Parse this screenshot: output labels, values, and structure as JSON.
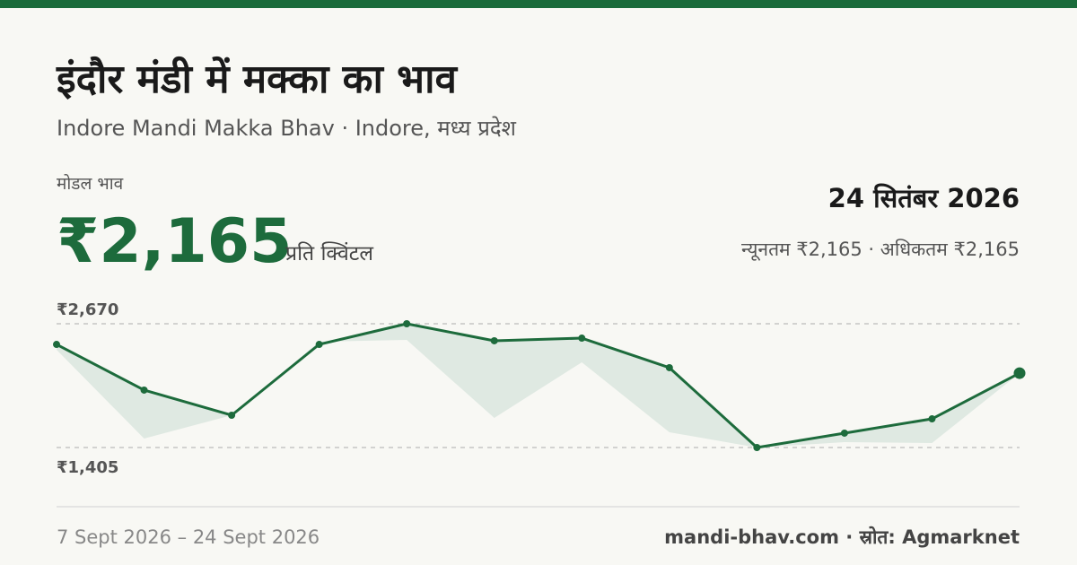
{
  "header": {
    "title": "इंदौर मंडी में मक्का का भाव",
    "subtitle": "Indore Mandi Makka Bhav · Indore, मध्य प्रदेश",
    "price_label": "मोडल भाव",
    "price": "₹2,165",
    "unit": "प्रति क्विंटल",
    "date": "24 सितंबर 2026",
    "range": "न्यूनतम ₹2,165 · अधिकतम ₹2,165"
  },
  "chart_data": {
    "type": "line",
    "categories": [
      null,
      null,
      null,
      null,
      null,
      null,
      null,
      null,
      null,
      null,
      null,
      null
    ],
    "series": [
      {
        "color": "#1d6b3c",
        "values": [
          2459,
          1992,
          1735,
          2459,
          2670,
          2496,
          2523,
          2221,
          1405,
          1552,
          1698,
          2165
        ]
      },
      {
        "color": "#dfe9e2",
        "values": [
          2404,
          1497,
          1735,
          2487,
          2505,
          1707,
          2276,
          1561,
          1405,
          1460,
          1451,
          2165
        ]
      }
    ],
    "ylim": [
      1405,
      2670
    ],
    "yticks": [
      {
        "value": 1405,
        "label": "₹1,405"
      },
      {
        "value": 2670,
        "label": "₹2,670"
      }
    ],
    "grid": true
  },
  "footer": {
    "date_range": "7 Sept 2026 – 24 Sept 2026",
    "source": "mandi-bhav.com · स्रोत: Agmarknet"
  }
}
